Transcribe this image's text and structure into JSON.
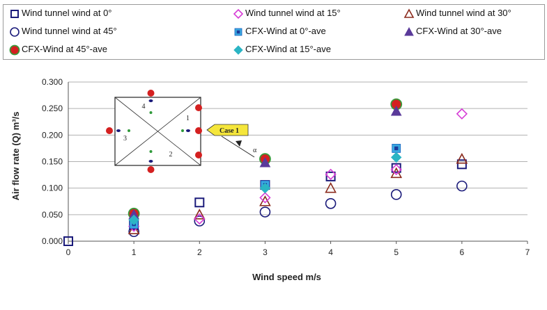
{
  "chart_data": {
    "type": "scatter",
    "xlabel": "Wind speed m/s",
    "ylabel": "Air flow rate (Q) m³/s",
    "xlim": [
      0,
      7
    ],
    "ylim": [
      0,
      0.3
    ],
    "x_ticks": [
      "0",
      "1",
      "2",
      "3",
      "4",
      "5",
      "6",
      "7"
    ],
    "y_ticks": [
      "0.000",
      "0.050",
      "0.100",
      "0.150",
      "0.200",
      "0.250",
      "0.300"
    ],
    "grid": "horizontal",
    "legend_position": "top",
    "series": [
      {
        "name": "Wind tunnel wind at 0°",
        "marker": "open-square",
        "color": "#1a1a7a",
        "points": [
          [
            0,
            0.0
          ],
          [
            1,
            0.03
          ],
          [
            2,
            0.073
          ],
          [
            3,
            0.106
          ],
          [
            4,
            0.122
          ],
          [
            5,
            0.138
          ],
          [
            6,
            0.145
          ]
        ]
      },
      {
        "name": "Wind tunnel wind at 15°",
        "marker": "open-diamond",
        "color": "#d63cd6",
        "points": [
          [
            1,
            0.028
          ],
          [
            2,
            0.042
          ],
          [
            3,
            0.082
          ],
          [
            4,
            0.126
          ],
          [
            5,
            0.135
          ],
          [
            6,
            0.24
          ]
        ]
      },
      {
        "name": "Wind tunnel wind at 30°",
        "marker": "open-triangle",
        "color": "#8b2b1d",
        "points": [
          [
            1,
            0.022
          ],
          [
            2,
            0.05
          ],
          [
            3,
            0.075
          ],
          [
            4,
            0.1
          ],
          [
            5,
            0.128
          ],
          [
            6,
            0.155
          ]
        ]
      },
      {
        "name": "Wind tunnel wind at 45°",
        "marker": "open-circle",
        "color": "#1a1a7a",
        "points": [
          [
            1,
            0.018
          ],
          [
            2,
            0.038
          ],
          [
            3,
            0.055
          ],
          [
            4,
            0.071
          ],
          [
            5,
            0.088
          ],
          [
            6,
            0.104
          ]
        ]
      },
      {
        "name": "CFX-Wind at 0°-ave",
        "marker": "filled-square",
        "color": "#39a9e0",
        "points": [
          [
            1,
            0.032
          ],
          [
            3,
            0.106
          ],
          [
            5,
            0.175
          ]
        ]
      },
      {
        "name": "CFX-Wind at 30°-ave",
        "marker": "filled-triangle",
        "color": "#5a3a9a",
        "points": [
          [
            1,
            0.05
          ],
          [
            3,
            0.148
          ],
          [
            5,
            0.245
          ]
        ]
      },
      {
        "name": "CFX-Wind at 45°-ave",
        "marker": "filled-circle-red",
        "color": "#d42020",
        "points": [
          [
            1,
            0.052
          ],
          [
            3,
            0.155
          ],
          [
            5,
            0.258
          ]
        ]
      },
      {
        "name": "CFX-Wind at 15°-ave",
        "marker": "filled-diamond",
        "color": "#2bb5c4",
        "points": [
          [
            1,
            0.04
          ],
          [
            3,
            0.1
          ],
          [
            5,
            0.158
          ]
        ]
      }
    ],
    "inset": {
      "labels": [
        "1",
        "2",
        "3",
        "4"
      ],
      "callout": "Case 1",
      "angle_label": "α"
    }
  }
}
